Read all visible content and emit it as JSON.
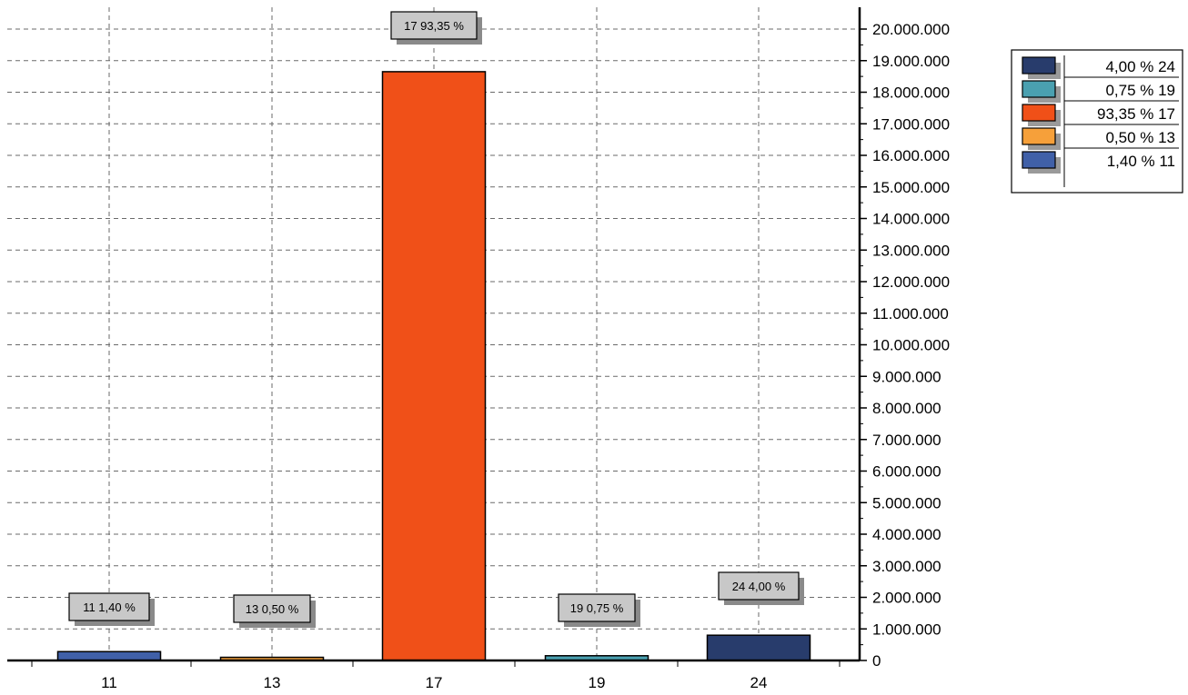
{
  "chart_data": {
    "type": "bar",
    "categories": [
      "11",
      "13",
      "17",
      "19",
      "24"
    ],
    "values": [
      280000,
      100000,
      18650000,
      150000,
      800000
    ],
    "colors": [
      "#4060a8",
      "#f6a03a",
      "#f05018",
      "#4aa0b0",
      "#283c6c"
    ],
    "data_labels": [
      "11 1,40 %",
      "13 0,50 %",
      "17 93,35 %",
      "19 0,75 %",
      "24 4,00 %"
    ],
    "y_ticks": [
      "0",
      "1.000.000",
      "2.000.000",
      "3.000.000",
      "4.000.000",
      "5.000.000",
      "6.000.000",
      "7.000.000",
      "8.000.000",
      "9.000.000",
      "10.000.000",
      "11.000.000",
      "12.000.000",
      "13.000.000",
      "14.000.000",
      "15.000.000",
      "16.000.000",
      "17.000.000",
      "18.000.000",
      "19.000.000",
      "20.000.000"
    ],
    "ylim": [
      0,
      20000000
    ],
    "y_axis_side": "right",
    "grid": true,
    "legend_position": "top-right",
    "legend": [
      {
        "label": "4,00 % 24",
        "color": "#283c6c"
      },
      {
        "label": "0,75 % 19",
        "color": "#4aa0b0"
      },
      {
        "label": "93,35 % 17",
        "color": "#f05018"
      },
      {
        "label": "0,50 % 13",
        "color": "#f6a03a"
      },
      {
        "label": "1,40 % 11",
        "color": "#4060a8"
      }
    ]
  }
}
